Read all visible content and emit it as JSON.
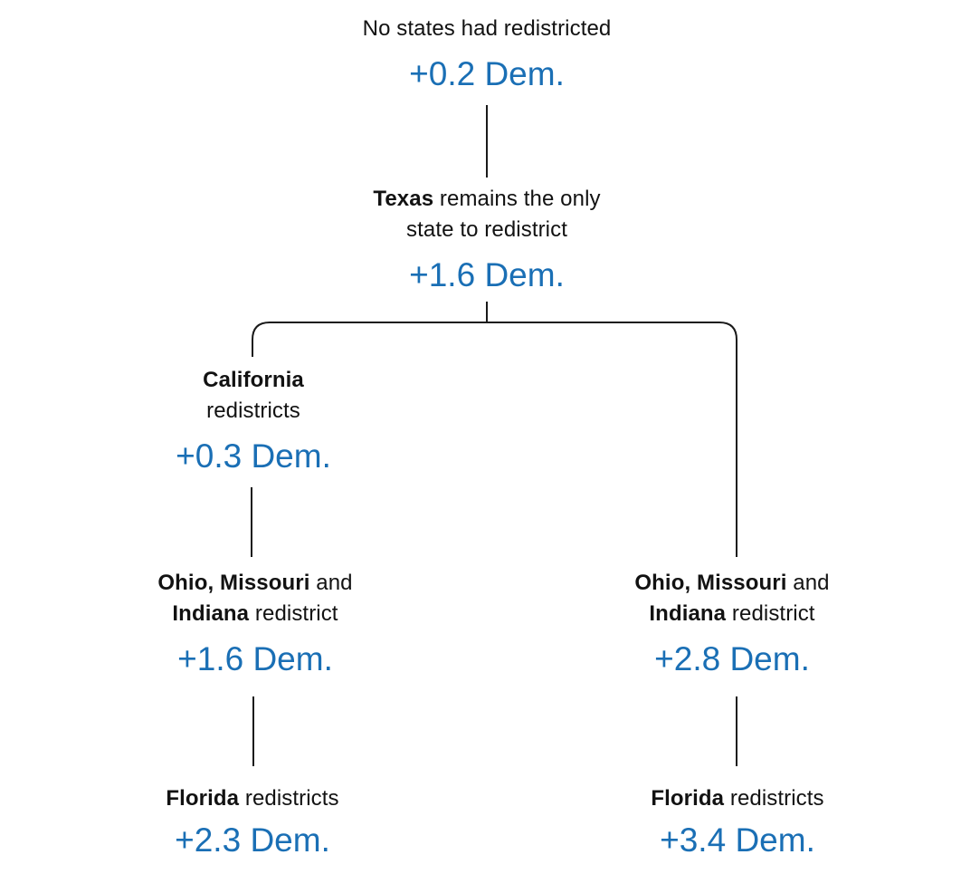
{
  "tree": {
    "root": {
      "label": "No states had redistricted",
      "value": "+0.2 Dem."
    },
    "texas": {
      "label_bold": "Texas",
      "label_rest": " remains the only",
      "label_line2": "state to redistrict",
      "value": "+1.6 Dem."
    },
    "california": {
      "label_bold": "California",
      "label_line2": "redistricts",
      "value": "+0.3 Dem."
    },
    "omi_left": {
      "bold_1": "Ohio, Missouri",
      "rest_1": " and",
      "bold_2": "Indiana",
      "rest_2": " redistrict",
      "value": "+1.6 Dem."
    },
    "omi_right": {
      "bold_1": "Ohio, Missouri",
      "rest_1": " and",
      "bold_2": "Indiana",
      "rest_2": " redistrict",
      "value": "+2.8 Dem."
    },
    "florida_left": {
      "label_bold": "Florida",
      "label_rest": " redistricts",
      "value": "+2.3 Dem."
    },
    "florida_right": {
      "label_bold": "Florida",
      "label_rest": " redistricts",
      "value": "+3.4 Dem."
    }
  },
  "colors": {
    "value_blue": "#1a6fb5",
    "text": "#121212",
    "connector": "#1a1a1a"
  }
}
